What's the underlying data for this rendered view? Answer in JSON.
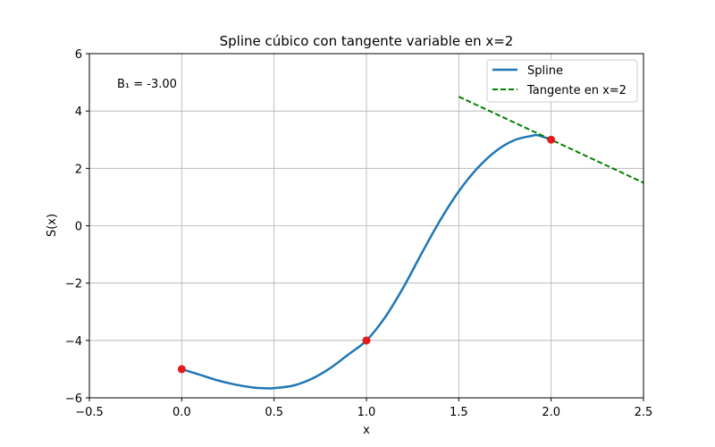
{
  "chart_data": {
    "type": "line",
    "title": "Spline cúbico con tangente variable en x=2",
    "xlabel": "x",
    "ylabel": "S(x)",
    "xlim": [
      -0.5,
      2.5
    ],
    "ylim": [
      -6,
      6
    ],
    "xticks": [
      -0.5,
      0.0,
      0.5,
      1.0,
      1.5,
      2.0,
      2.5
    ],
    "xtick_labels": [
      "−0.5",
      "0.0",
      "0.5",
      "1.0",
      "1.5",
      "2.0",
      "2.5"
    ],
    "yticks": [
      -6,
      -4,
      -2,
      0,
      2,
      4,
      6
    ],
    "ytick_labels": [
      "−6",
      "−4",
      "−2",
      "0",
      "2",
      "4",
      "6"
    ],
    "grid": true,
    "legend_position": "top-right",
    "annotation": "B₁ = -3.00",
    "series": [
      {
        "name": "Spline",
        "style": "solid",
        "color": "#1f77b4",
        "x": [
          0.0,
          0.1,
          0.2,
          0.3,
          0.4,
          0.47,
          0.5,
          0.6,
          0.7,
          0.8,
          0.9,
          1.0,
          1.1,
          1.2,
          1.3,
          1.4,
          1.5,
          1.6,
          1.7,
          1.8,
          1.9,
          1.93,
          2.0
        ],
        "y": [
          -5.0,
          -5.2,
          -5.4,
          -5.55,
          -5.65,
          -5.67,
          -5.66,
          -5.58,
          -5.35,
          -4.98,
          -4.5,
          -4.0,
          -3.2,
          -2.15,
          -0.95,
          0.2,
          1.2,
          2.0,
          2.6,
          2.98,
          3.14,
          3.15,
          3.0
        ]
      },
      {
        "name": "Tangente en x=2",
        "style": "dashed",
        "color": "#008000",
        "x": [
          1.5,
          2.5
        ],
        "y": [
          4.5,
          1.5
        ]
      }
    ],
    "points": {
      "color": "#e41a1c",
      "x": [
        0,
        1,
        2
      ],
      "y": [
        -5,
        -4,
        3
      ]
    }
  }
}
